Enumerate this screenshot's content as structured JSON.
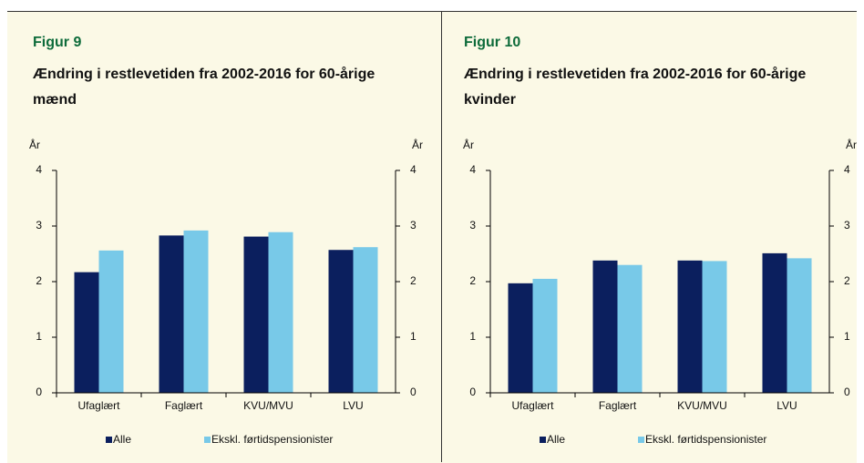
{
  "chart_data": [
    {
      "type": "bar",
      "figure_label": "Figur 9",
      "title": "Ændring i restlevetiden fra 2002-2016 for 60-årige mænd",
      "y_label": "År",
      "y2_label": "År",
      "categories": [
        "Ufaglært",
        "Faglært",
        "KVU/MVU",
        "LVU"
      ],
      "series": [
        {
          "name": "Alle",
          "color": "#0b1f5e",
          "values": [
            2.17,
            2.83,
            2.81,
            2.57
          ]
        },
        {
          "name": "Ekskl. førtidspensionister",
          "color": "#78c9e8",
          "values": [
            2.56,
            2.92,
            2.89,
            2.62
          ]
        }
      ],
      "ylim": [
        0,
        4
      ],
      "yticks": [
        0,
        1,
        2,
        3,
        4
      ],
      "y2lim": [
        0,
        4
      ],
      "y2ticks": [
        0,
        1,
        2,
        3,
        4
      ],
      "legend": "bottom"
    },
    {
      "type": "bar",
      "figure_label": "Figur 10",
      "title": "Ændring i restlevetiden fra 2002-2016 for 60-årige kvinder",
      "y_label": "År",
      "y2_label": "År",
      "categories": [
        "Ufaglært",
        "Faglært",
        "KVU/MVU",
        "LVU"
      ],
      "series": [
        {
          "name": "Alle",
          "color": "#0b1f5e",
          "values": [
            1.97,
            2.38,
            2.38,
            2.51
          ]
        },
        {
          "name": "Ekskl. førtidspensionister",
          "color": "#78c9e8",
          "values": [
            2.05,
            2.3,
            2.37,
            2.42
          ]
        }
      ],
      "ylim": [
        0,
        4
      ],
      "yticks": [
        0,
        1,
        2,
        3,
        4
      ],
      "y2lim": [
        0,
        4
      ],
      "y2ticks": [
        0,
        1,
        2,
        3,
        4
      ],
      "legend": "bottom"
    }
  ]
}
